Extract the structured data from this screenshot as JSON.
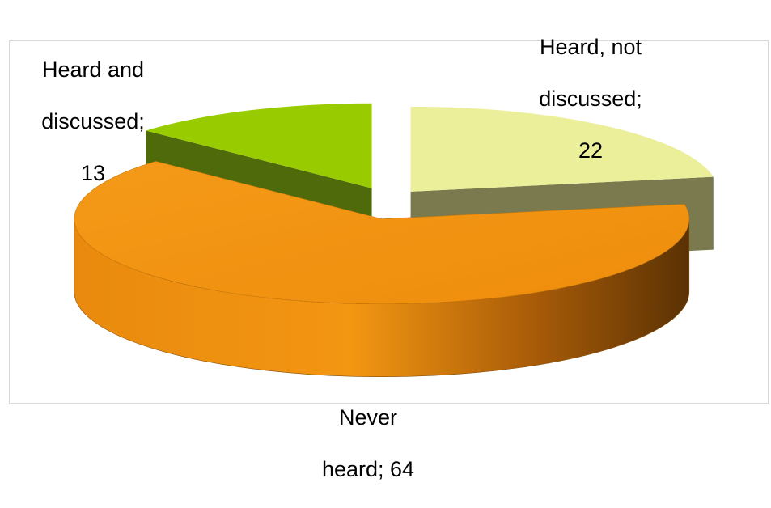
{
  "chart_data": {
    "type": "pie",
    "title": "",
    "style": "3d-exploded",
    "slices": [
      {
        "name": "Heard and discussed",
        "value": 13,
        "label_line1": "Heard and",
        "label_line2": "discussed;",
        "label_line3": "13",
        "color": "#99cc00",
        "side_color": "#4e6a0a"
      },
      {
        "name": "Heard, not discussed",
        "value": 22,
        "label_line1": "Heard, not",
        "label_line2": "discussed;",
        "label_line3": "22",
        "color": "#ebef9a",
        "side_color": "#7b7a4e"
      },
      {
        "name": "Never heard",
        "value": 64,
        "label_line1": "Never",
        "label_line2": "heard; 64",
        "label_line3": "",
        "color": "#f39612",
        "side_color": "#c2700c"
      }
    ]
  }
}
